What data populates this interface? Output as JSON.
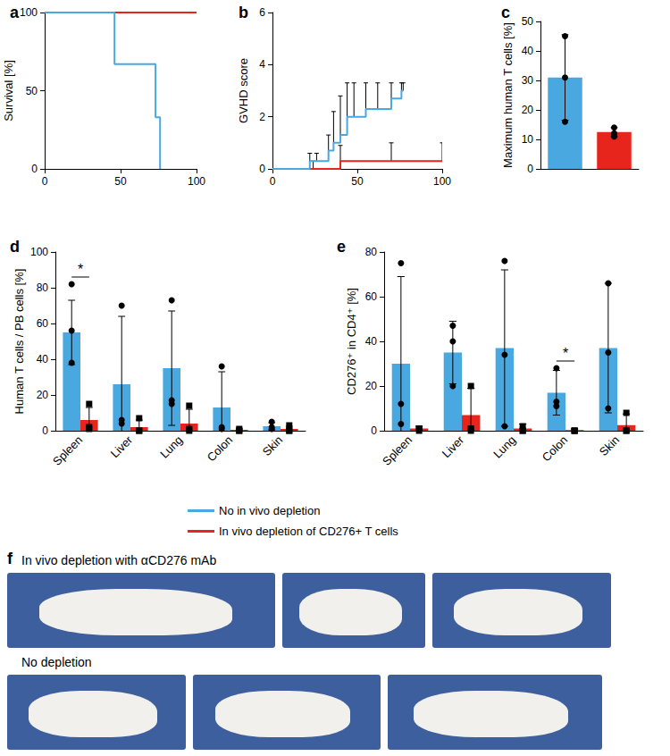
{
  "chart_data": [
    {
      "type": "line",
      "title": "a",
      "ylabel": "Survival [%]",
      "line_style": "step",
      "grid": false,
      "xlim": [
        0,
        100
      ],
      "xticks": [
        0,
        50,
        100
      ],
      "ylim": [
        0,
        100
      ],
      "yticks": [
        0,
        50,
        100
      ],
      "series": [
        {
          "color": "#e8251c",
          "x": [
            0,
            100
          ],
          "values": [
            100,
            100
          ]
        },
        {
          "color": "#4aa8e0",
          "x": [
            0,
            46,
            73,
            76
          ],
          "values": [
            100,
            67,
            33,
            0
          ]
        }
      ]
    },
    {
      "type": "line",
      "title": "b",
      "ylabel": "GVHD score",
      "line_style": "step",
      "grid": false,
      "xlim": [
        0,
        100
      ],
      "xticks": [
        0,
        50,
        100
      ],
      "ylim": [
        0,
        6
      ],
      "yticks": [
        0,
        2,
        4,
        6
      ],
      "series": [
        {
          "color": "#e8251c",
          "x": [
            0,
            24,
            40,
            70,
            100
          ],
          "values": [
            0,
            0,
            0.3,
            0.3,
            0.3
          ],
          "error_upper": [
            0,
            0.3,
            0.6,
            0.7,
            0.7
          ]
        },
        {
          "color": "#4aa8e0",
          "x": [
            0,
            22,
            26,
            33,
            36,
            40,
            44,
            48,
            55,
            62,
            70,
            76,
            77
          ],
          "values": [
            0,
            0.3,
            0.3,
            0.7,
            1,
            1.3,
            2,
            2,
            2.3,
            2.3,
            2.7,
            3,
            3
          ],
          "error_upper": [
            0,
            0.3,
            0.3,
            0.6,
            1.2,
            1.5,
            1.3,
            1.3,
            1,
            1,
            0.6,
            0.3,
            0.3
          ]
        }
      ]
    },
    {
      "type": "bar",
      "title": "c",
      "ylabel": "Maximum human T cells [%]",
      "grid": false,
      "categories": [
        null,
        null
      ],
      "ylim": [
        0,
        50
      ],
      "yticks": [
        0,
        10,
        20,
        30,
        40,
        50
      ],
      "values": [
        31,
        12.5
      ],
      "colors": [
        "#4aa8e0",
        "#e8251c"
      ],
      "errors": [
        14.5,
        1.5
      ],
      "points": [
        [
          45,
          31,
          16
        ],
        [
          14,
          12,
          11
        ]
      ],
      "marker": "circle"
    },
    {
      "type": "bar",
      "title": "d",
      "ylabel": "Human T cells / PB cells [%]",
      "grid": false,
      "legend": "bottom",
      "categories": [
        "Spleen",
        "Liver",
        "Lung",
        "Colon",
        "Skin"
      ],
      "ylim": [
        0,
        100
      ],
      "yticks": [
        0,
        20,
        40,
        60,
        80,
        100
      ],
      "series": [
        {
          "name": "No in vivo depletion",
          "color": "#4aa8e0",
          "marker": "circle",
          "values": [
            55,
            26,
            35,
            13,
            2.5
          ],
          "errors": [
            18,
            38,
            32,
            20,
            2
          ],
          "points": [
            [
              82,
              56,
              38
            ],
            [
              70,
              6,
              4
            ],
            [
              73,
              17,
              15
            ],
            [
              36,
              2,
              1
            ],
            [
              5,
              2,
              1
            ]
          ]
        },
        {
          "name": "In vivo depletion of CD276+ T cells",
          "color": "#e8251c",
          "marker": "square",
          "values": [
            6,
            2,
            4,
            0.5,
            1
          ],
          "errors": [
            7,
            4,
            8,
            0.5,
            1.5
          ],
          "points": [
            [
              15,
              2,
              1
            ],
            [
              7,
              0,
              0
            ],
            [
              14,
              1,
              0
            ],
            [
              1,
              0,
              0
            ],
            [
              3,
              0,
              0
            ]
          ]
        }
      ],
      "annotations": [
        {
          "text": "*",
          "category": "Spleen"
        }
      ]
    },
    {
      "type": "bar",
      "title": "e",
      "ylabel": "CD276⁺ in CD4⁺ [%]",
      "grid": false,
      "categories": [
        "Spleen",
        "Liver",
        "Lung",
        "Colon",
        "Skin"
      ],
      "ylim": [
        0,
        80
      ],
      "yticks": [
        0,
        20,
        40,
        60,
        80
      ],
      "series": [
        {
          "name": "No in vivo depletion",
          "color": "#4aa8e0",
          "marker": "circle",
          "values": [
            30,
            35,
            37,
            17,
            37
          ],
          "errors": [
            39,
            14,
            35,
            10,
            29
          ],
          "points": [
            [
              75,
              12,
              3
            ],
            [
              47,
              40,
              20
            ],
            [
              76,
              34,
              2
            ],
            [
              28,
              13,
              11
            ],
            [
              66,
              35,
              10
            ]
          ]
        },
        {
          "name": "In vivo depletion of CD276+ T cells",
          "color": "#e8251c",
          "marker": "square",
          "values": [
            1,
            7,
            1,
            0.3,
            2.5
          ],
          "errors": [
            1,
            12,
            2,
            0.5,
            5
          ],
          "points": [
            [
              1,
              1,
              0
            ],
            [
              20,
              1,
              0
            ],
            [
              2,
              0,
              0
            ],
            [
              0,
              0,
              0
            ],
            [
              8,
              0,
              0
            ]
          ]
        }
      ],
      "annotations": [
        {
          "text": "*",
          "category": "Colon"
        }
      ]
    }
  ],
  "photo_panel": {
    "title": "f",
    "rows": [
      {
        "caption": "In vivo depletion with αCD276 mAb"
      },
      {
        "caption": "No depletion"
      }
    ]
  }
}
